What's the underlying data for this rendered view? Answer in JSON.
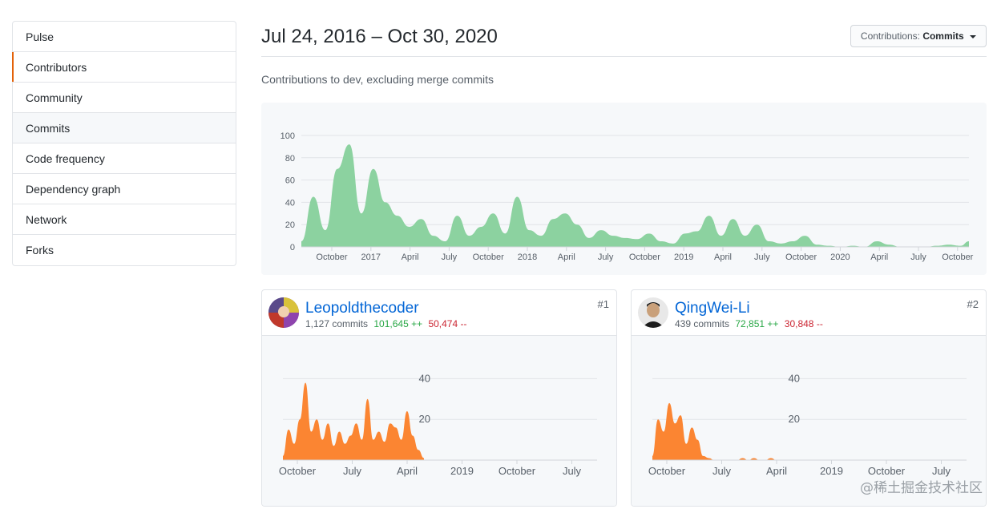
{
  "sidebar": {
    "items": [
      {
        "label": "Pulse"
      },
      {
        "label": "Contributors"
      },
      {
        "label": "Community"
      },
      {
        "label": "Commits"
      },
      {
        "label": "Code frequency"
      },
      {
        "label": "Dependency graph"
      },
      {
        "label": "Network"
      },
      {
        "label": "Forks"
      }
    ],
    "selected": "Contributors"
  },
  "header": {
    "title": "Jul 24, 2016 – Oct 30, 2020",
    "select_label": "Contributions:",
    "select_value": "Commits"
  },
  "subtitle": "Contributions to dev, excluding merge commits",
  "colors": {
    "main_area": "#8cd2a0",
    "contributor_area": "#fb8532",
    "selected_bar": "#e36209"
  },
  "chart_data": [
    {
      "type": "area",
      "ylim": [
        0,
        100
      ],
      "yticks": [
        0,
        20,
        40,
        60,
        80,
        100
      ],
      "xticks": [
        "October",
        "2017",
        "April",
        "July",
        "October",
        "2018",
        "April",
        "July",
        "October",
        "2019",
        "April",
        "July",
        "October",
        "2020",
        "April",
        "July",
        "October"
      ],
      "xrange": [
        "2016-07-24",
        "2020-10-30"
      ],
      "series": [
        {
          "name": "",
          "x": [
            "2016-07-24",
            "2016-08-21",
            "2016-09-18",
            "2016-10-16",
            "2016-11-13",
            "2016-12-11",
            "2017-01-08",
            "2017-02-05",
            "2017-03-05",
            "2017-04-02",
            "2017-04-30",
            "2017-05-28",
            "2017-06-25",
            "2017-07-23",
            "2017-08-20",
            "2017-09-17",
            "2017-10-15",
            "2017-11-12",
            "2017-12-10",
            "2018-01-07",
            "2018-02-04",
            "2018-03-04",
            "2018-04-01",
            "2018-04-29",
            "2018-05-27",
            "2018-06-24",
            "2018-07-22",
            "2018-08-19",
            "2018-09-16",
            "2018-10-14",
            "2018-11-11",
            "2018-12-09",
            "2019-01-06",
            "2019-02-03",
            "2019-03-03",
            "2019-03-31",
            "2019-04-28",
            "2019-05-26",
            "2019-06-23",
            "2019-07-21",
            "2019-08-18",
            "2019-09-15",
            "2019-10-13",
            "2019-11-10",
            "2019-12-08",
            "2020-01-05",
            "2020-02-02",
            "2020-03-01",
            "2020-03-29",
            "2020-04-26",
            "2020-05-24",
            "2020-06-21",
            "2020-07-19",
            "2020-08-16",
            "2020-09-13",
            "2020-10-11",
            "2020-10-30"
          ],
          "values": [
            5,
            45,
            15,
            70,
            92,
            30,
            70,
            40,
            28,
            18,
            25,
            10,
            5,
            28,
            10,
            18,
            30,
            12,
            45,
            15,
            10,
            25,
            30,
            20,
            8,
            15,
            10,
            8,
            7,
            12,
            5,
            3,
            12,
            14,
            28,
            10,
            25,
            10,
            20,
            5,
            3,
            5,
            10,
            2,
            1,
            0,
            1,
            0,
            5,
            2,
            0,
            0,
            0,
            1,
            2,
            1,
            5
          ]
        }
      ]
    },
    {
      "type": "area",
      "ylim": [
        0,
        50
      ],
      "yticks": [
        20,
        40
      ],
      "xticks": [
        "October",
        "July",
        "April",
        "2019",
        "October",
        "July"
      ],
      "xrange": [
        "2016-07-24",
        "2020-10-30"
      ],
      "series": [
        {
          "name": "Leopoldthecoder",
          "x": [
            "2016-07-24",
            "2016-08-21",
            "2016-09-18",
            "2016-10-16",
            "2016-11-13",
            "2016-12-11",
            "2017-01-08",
            "2017-02-05",
            "2017-03-05",
            "2017-04-02",
            "2017-04-30",
            "2017-05-28",
            "2017-06-25",
            "2017-07-23",
            "2017-08-20",
            "2017-09-17",
            "2017-10-15",
            "2017-11-12",
            "2017-12-10",
            "2018-01-07",
            "2018-02-04",
            "2018-03-04",
            "2018-04-01",
            "2018-04-29",
            "2018-05-27",
            "2018-06-24"
          ],
          "values": [
            2,
            15,
            8,
            20,
            38,
            14,
            20,
            10,
            18,
            7,
            14,
            8,
            12,
            18,
            10,
            30,
            10,
            14,
            9,
            18,
            16,
            10,
            24,
            12,
            5,
            1
          ]
        }
      ]
    },
    {
      "type": "area",
      "ylim": [
        0,
        50
      ],
      "yticks": [
        20,
        40
      ],
      "xticks": [
        "October",
        "July",
        "April",
        "2019",
        "October",
        "July"
      ],
      "xrange": [
        "2016-07-24",
        "2020-10-30"
      ],
      "series": [
        {
          "name": "QingWei-Li",
          "x": [
            "2016-07-24",
            "2016-08-21",
            "2016-09-18",
            "2016-10-16",
            "2016-11-13",
            "2016-12-11",
            "2017-01-08",
            "2017-02-05",
            "2017-03-05",
            "2017-04-02",
            "2017-04-30",
            "2017-05-28",
            "2017-06-25",
            "2017-07-23",
            "2017-08-20",
            "2017-09-17",
            "2017-10-15",
            "2017-11-12",
            "2017-12-10",
            "2018-01-07",
            "2018-02-04",
            "2018-03-04",
            "2018-04-01"
          ],
          "values": [
            2,
            20,
            14,
            28,
            18,
            22,
            8,
            16,
            10,
            2,
            1,
            0,
            0,
            0,
            0,
            0,
            1,
            0,
            1,
            0,
            0,
            1,
            0
          ]
        }
      ]
    }
  ],
  "contributors": [
    {
      "name": "Leopoldthecoder",
      "commits": "1,127 commits",
      "additions": "101,645 ++",
      "deletions": "50,474 --",
      "rank": "#1"
    },
    {
      "name": "QingWei-Li",
      "commits": "439 commits",
      "additions": "72,851 ++",
      "deletions": "30,848 --",
      "rank": "#2"
    }
  ],
  "watermark": "@稀土掘金技术社区"
}
